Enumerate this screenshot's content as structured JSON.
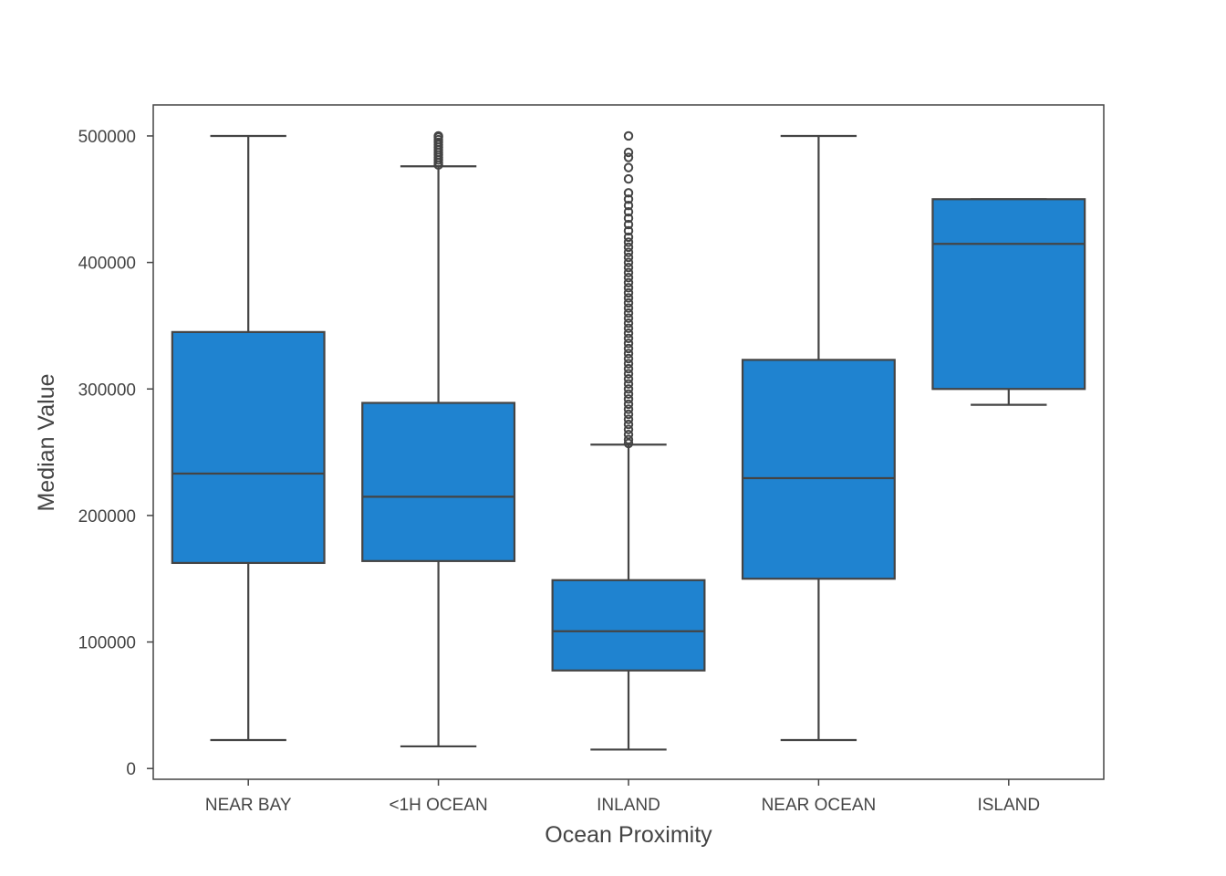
{
  "chart_data": {
    "type": "box",
    "title": "",
    "xlabel": "Ocean Proximity",
    "ylabel": "Median Value",
    "ylim": [
      -8500,
      524500
    ],
    "yticks": [
      0,
      100000,
      200000,
      300000,
      400000,
      500000
    ],
    "ytick_labels": [
      "0",
      "100000",
      "200000",
      "300000",
      "400000",
      "500000"
    ],
    "categories": [
      "NEAR BAY",
      "<1H OCEAN",
      "INLAND",
      "NEAR OCEAN",
      "ISLAND"
    ],
    "grid": false,
    "box_color": "#1f83d0",
    "edge_color": "#444444",
    "boxes": [
      {
        "category": "NEAR BAY",
        "whisker_low": 22500,
        "q1": 162500,
        "median": 233100,
        "q3": 345000,
        "whisker_high": 500000,
        "outliers": []
      },
      {
        "category": "<1H OCEAN",
        "whisker_low": 17500,
        "q1": 164000,
        "median": 214800,
        "q3": 289000,
        "whisker_high": 476000,
        "outliers": [
          477000,
          479000,
          481000,
          483000,
          485000,
          487000,
          489000,
          491000,
          493000,
          495000,
          497000,
          499000,
          500000
        ]
      },
      {
        "category": "INLAND",
        "whisker_low": 14999,
        "q1": 77500,
        "median": 108500,
        "q3": 148900,
        "whisker_high": 256000,
        "outliers": [
          257000,
          260000,
          264000,
          268000,
          272000,
          276000,
          280000,
          284000,
          288000,
          292000,
          296000,
          300000,
          304000,
          308000,
          312000,
          316000,
          320000,
          324000,
          328000,
          332000,
          336000,
          340000,
          344000,
          348000,
          352000,
          356000,
          360000,
          364000,
          368000,
          372000,
          376000,
          380000,
          384000,
          388000,
          392000,
          396000,
          400000,
          404000,
          408000,
          412000,
          416000,
          420000,
          425000,
          430000,
          435000,
          440000,
          445000,
          450000,
          455000,
          466000,
          475000,
          483000,
          487000,
          500000
        ]
      },
      {
        "category": "NEAR OCEAN",
        "whisker_low": 22500,
        "q1": 150000,
        "median": 229500,
        "q3": 323000,
        "whisker_high": 500000,
        "outliers": []
      },
      {
        "category": "ISLAND",
        "whisker_low": 287500,
        "q1": 300000,
        "median": 414700,
        "q3": 450000,
        "whisker_high": 450000,
        "outliers": []
      }
    ]
  }
}
